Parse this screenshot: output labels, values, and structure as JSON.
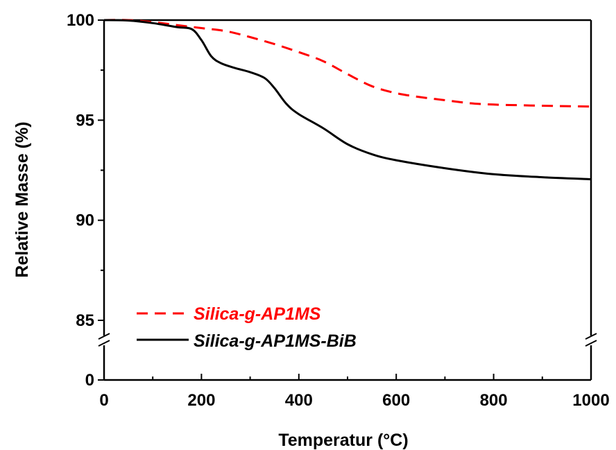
{
  "chart_data": {
    "type": "line",
    "xlabel": "Temperatur (°C)",
    "ylabel": "Relative Masse (%)",
    "xlim": [
      0,
      1000
    ],
    "ylim_upper_segment": [
      85,
      100
    ],
    "ylim_lower_segment": [
      0,
      0
    ],
    "axis_break": "y-axis between 0 and 85",
    "x_ticks": [
      "0",
      "200",
      "400",
      "600",
      "800",
      "1000"
    ],
    "y_ticks": [
      "85",
      "90",
      "95",
      "100",
      "0"
    ],
    "grid": false,
    "legend_position": "bottom-left",
    "series": [
      {
        "name": "Silica-g-AP1MS",
        "color": "#ff0000",
        "style": "dashed",
        "x": [
          0,
          50,
          100,
          150,
          200,
          250,
          300,
          350,
          400,
          450,
          500,
          550,
          600,
          650,
          700,
          750,
          800,
          850,
          900,
          950,
          1000
        ],
        "y": [
          100,
          100,
          99.9,
          99.75,
          99.6,
          99.45,
          99.15,
          98.8,
          98.4,
          97.95,
          97.3,
          96.7,
          96.35,
          96.15,
          96.0,
          95.85,
          95.78,
          95.75,
          95.72,
          95.7,
          95.68
        ]
      },
      {
        "name": "Silica-g-AP1MS-BiB",
        "color": "#000000",
        "style": "solid",
        "x": [
          0,
          50,
          100,
          150,
          180,
          200,
          220,
          240,
          270,
          300,
          330,
          350,
          375,
          400,
          450,
          500,
          550,
          600,
          700,
          800,
          900,
          1000
        ],
        "y": [
          100,
          99.98,
          99.85,
          99.65,
          99.55,
          99.0,
          98.2,
          97.85,
          97.6,
          97.4,
          97.1,
          96.6,
          95.8,
          95.3,
          94.6,
          93.8,
          93.3,
          93.0,
          92.6,
          92.3,
          92.15,
          92.05
        ]
      }
    ]
  }
}
